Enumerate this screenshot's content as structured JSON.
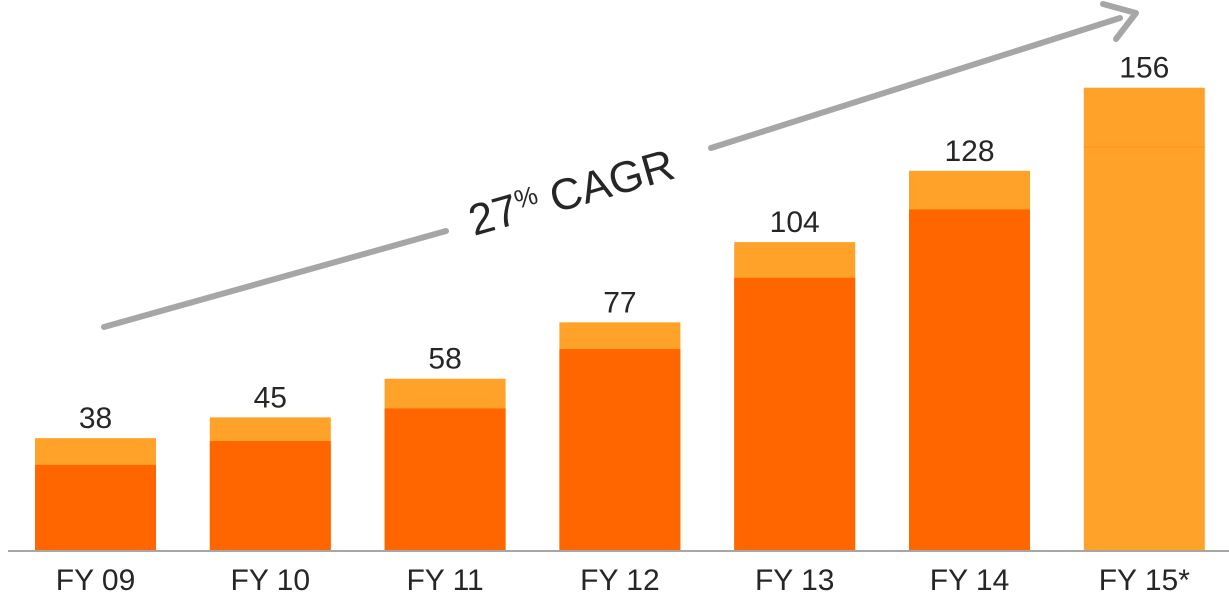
{
  "chart_data": {
    "type": "bar",
    "categories": [
      "FY 09",
      "FY 10",
      "FY 11",
      "FY 12",
      "FY 13",
      "FY 14",
      "FY 15*"
    ],
    "values": [
      38,
      45,
      58,
      77,
      104,
      128,
      156
    ],
    "value_labels": [
      "38",
      "45",
      "58",
      "77",
      "104",
      "128",
      "156"
    ],
    "segments": {
      "upper_cap_values": [
        9,
        8,
        10,
        9,
        12,
        13,
        20
      ],
      "full_light_category": "FY 15*"
    },
    "annotation": {
      "number": "27",
      "percent": "%",
      "label": "CAGR"
    },
    "title": "",
    "xlabel": "",
    "ylabel": "",
    "ylim": [
      0,
      160
    ],
    "grid": false,
    "legend": "none",
    "colors": {
      "dark": "#ff6600",
      "light": "#ffa229",
      "arrow": "#a6a6a6",
      "axis": "#a6a6a6",
      "text": "#262626"
    }
  }
}
